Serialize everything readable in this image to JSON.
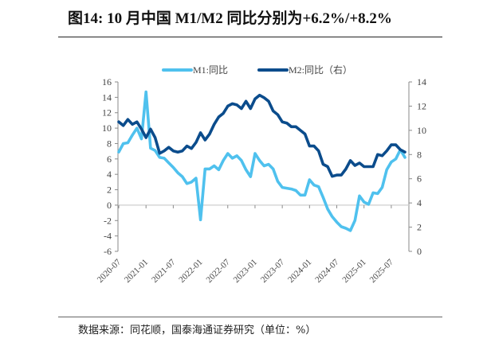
{
  "title": "图14:  10 月中国 M1/M2 同比分别为+6.2%/+8.2%",
  "source": "数据来源：同花顺，国泰海通证券研究（单位：%）",
  "chart_data": {
    "type": "line",
    "title": "图14:  10 月中国 M1/M2 同比分别为+6.2%/+8.2%",
    "legend_placement": "top-center",
    "grid": false,
    "x_start": "2020-07",
    "x_end": "2025-10",
    "x_tick_labels": [
      "2020-07",
      "2021-01",
      "2021-07",
      "2022-01",
      "2022-07",
      "2023-01",
      "2023-07",
      "2024-01",
      "2024-07",
      "2025-01",
      "2025-07"
    ],
    "y_left": {
      "range": [
        -6,
        16
      ],
      "ticks": [
        "16",
        "14",
        "12",
        "10",
        "8",
        "6",
        "4",
        "2",
        "0",
        "-2",
        "-4",
        "-6"
      ]
    },
    "y_right": {
      "range": [
        0,
        14
      ],
      "ticks": [
        "14",
        "12",
        "10",
        "8",
        "6",
        "4",
        "2",
        "0"
      ]
    },
    "series": [
      {
        "name": "M1:同比",
        "axis": "left",
        "color": "#4FC1EE",
        "values": [
          6.9,
          8.0,
          8.1,
          9.1,
          10.0,
          8.6,
          14.7,
          7.4,
          7.1,
          6.2,
          6.1,
          5.5,
          4.9,
          4.2,
          3.7,
          2.8,
          3.0,
          3.5,
          -1.9,
          4.7,
          4.7,
          5.1,
          4.6,
          5.8,
          6.7,
          6.1,
          6.4,
          5.8,
          4.6,
          3.7,
          6.7,
          5.8,
          5.1,
          5.3,
          4.7,
          3.1,
          2.3,
          2.2,
          2.1,
          1.9,
          1.3,
          1.3,
          3.3,
          2.6,
          2.4,
          1.0,
          -0.5,
          -1.5,
          -2.2,
          -2.8,
          -3.0,
          -3.3,
          -2.0,
          1.2,
          0.4,
          0.1,
          1.6,
          1.5,
          2.3,
          4.6,
          5.6,
          6.0,
          7.2,
          6.2
        ]
      },
      {
        "name": "M2:同比（右）",
        "axis": "right",
        "color": "#0B4C8C",
        "values": [
          10.7,
          10.4,
          10.9,
          10.5,
          10.7,
          10.1,
          9.4,
          10.1,
          9.4,
          8.1,
          8.3,
          8.6,
          8.3,
          8.2,
          8.3,
          8.7,
          8.5,
          9.0,
          9.8,
          9.2,
          9.7,
          10.5,
          11.1,
          11.4,
          12.0,
          12.2,
          12.1,
          11.8,
          12.4,
          11.8,
          12.6,
          12.9,
          12.7,
          12.4,
          11.6,
          11.3,
          10.7,
          10.6,
          10.3,
          10.3,
          10.0,
          9.7,
          8.7,
          8.7,
          8.3,
          7.2,
          7.0,
          6.2,
          6.3,
          6.3,
          6.8,
          7.5,
          7.1,
          7.3,
          7.0,
          7.0,
          7.0,
          8.0,
          7.9,
          8.3,
          8.8,
          8.8,
          8.4,
          8.2
        ]
      }
    ]
  }
}
